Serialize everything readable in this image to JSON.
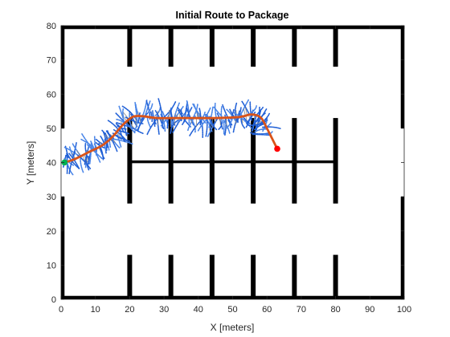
{
  "chart_data": {
    "type": "scatter",
    "title": "Initial Route to Package",
    "xlabel": "X [meters]",
    "ylabel": "Y [meters]",
    "xlim": [
      0,
      100
    ],
    "ylim": [
      0,
      80
    ],
    "xticks": [
      0,
      10,
      20,
      30,
      40,
      50,
      60,
      70,
      80,
      90,
      100
    ],
    "yticks": [
      0,
      10,
      20,
      30,
      40,
      50,
      60,
      70,
      80
    ],
    "grid": false,
    "box": true,
    "colors": {
      "obstacle": "#000000",
      "route": "#d95319",
      "tree_primary": "#1f5fd6",
      "tree_secondary": "#4a86e8",
      "tree_edge": "#8a8a8a",
      "start": "#00b050",
      "goal": "#ff0000",
      "axis": "#262626"
    },
    "obstacles": [
      {
        "x": [
          0,
          100
        ],
        "y": [
          0,
          1
        ]
      },
      {
        "x": [
          0,
          100
        ],
        "y": [
          79,
          80
        ]
      },
      {
        "x": [
          0,
          1
        ],
        "y": [
          0,
          30
        ]
      },
      {
        "x": [
          0,
          1
        ],
        "y": [
          50,
          80
        ]
      },
      {
        "x": [
          99,
          100
        ],
        "y": [
          0,
          30
        ]
      },
      {
        "x": [
          99,
          100
        ],
        "y": [
          50,
          80
        ]
      },
      {
        "x": [
          19.3,
          20.7
        ],
        "y": [
          68,
          80
        ]
      },
      {
        "x": [
          31.3,
          32.7
        ],
        "y": [
          68,
          80
        ]
      },
      {
        "x": [
          43.3,
          44.7
        ],
        "y": [
          68,
          80
        ]
      },
      {
        "x": [
          55.3,
          56.7
        ],
        "y": [
          68,
          80
        ]
      },
      {
        "x": [
          67.3,
          68.7
        ],
        "y": [
          68,
          80
        ]
      },
      {
        "x": [
          79.3,
          80.7
        ],
        "y": [
          68,
          80
        ]
      },
      {
        "x": [
          19.3,
          20.7
        ],
        "y": [
          28,
          53
        ]
      },
      {
        "x": [
          31.3,
          32.7
        ],
        "y": [
          28,
          53
        ]
      },
      {
        "x": [
          43.3,
          44.7
        ],
        "y": [
          28,
          53
        ]
      },
      {
        "x": [
          55.3,
          56.7
        ],
        "y": [
          28,
          53
        ]
      },
      {
        "x": [
          67.3,
          68.7
        ],
        "y": [
          28,
          53
        ]
      },
      {
        "x": [
          79.3,
          80.7
        ],
        "y": [
          28,
          53
        ]
      },
      {
        "x": [
          20,
          80
        ],
        "y": [
          39.8,
          40.6
        ]
      },
      {
        "x": [
          19.3,
          20.7
        ],
        "y": [
          0,
          13
        ]
      },
      {
        "x": [
          31.3,
          32.7
        ],
        "y": [
          0,
          13
        ]
      },
      {
        "x": [
          43.3,
          44.7
        ],
        "y": [
          0,
          13
        ]
      },
      {
        "x": [
          55.3,
          56.7
        ],
        "y": [
          0,
          13
        ]
      },
      {
        "x": [
          67.3,
          68.7
        ],
        "y": [
          0,
          13
        ]
      },
      {
        "x": [
          79.3,
          80.7
        ],
        "y": [
          0,
          13
        ]
      }
    ],
    "route": [
      [
        1,
        40
      ],
      [
        4,
        41
      ],
      [
        8,
        43
      ],
      [
        12,
        45
      ],
      [
        15,
        47.5
      ],
      [
        18,
        51
      ],
      [
        21,
        53.4
      ],
      [
        24,
        53.5
      ],
      [
        28,
        53
      ],
      [
        35,
        53
      ],
      [
        45,
        53
      ],
      [
        52,
        53.3
      ],
      [
        55,
        54
      ],
      [
        57,
        53.8
      ],
      [
        58.5,
        52.8
      ],
      [
        60,
        50
      ],
      [
        61.5,
        47
      ],
      [
        63,
        44
      ]
    ],
    "start": [
      1,
      40
    ],
    "goal": [
      63,
      44
    ],
    "explored_tree_samples": 170
  }
}
